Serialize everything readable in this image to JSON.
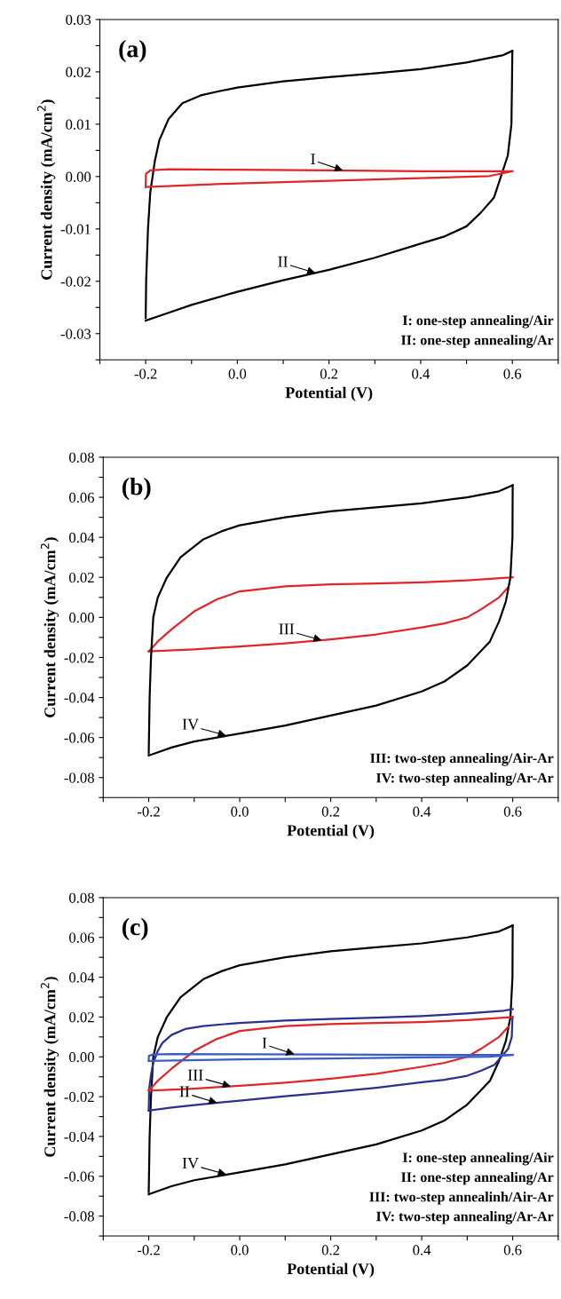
{
  "chart_data": [
    {
      "type": "line",
      "title": "(a)",
      "xlabel": "Potential (V)",
      "ylabel": "Current density (mA/cm$^{2}$)",
      "xlim": [
        -0.3,
        0.7
      ],
      "xticks": [
        {
          "value": -0.3,
          "label": null
        },
        {
          "value": -0.2,
          "label": "-0.2"
        },
        {
          "value": -0.1,
          "label": null
        },
        {
          "value": 0,
          "label": "0.0"
        },
        {
          "value": 0.1,
          "label": null
        },
        {
          "value": 0.2,
          "label": "0.2"
        },
        {
          "value": 0.3,
          "label": null
        },
        {
          "value": 0.4,
          "label": "0.4"
        },
        {
          "value": 0.5,
          "label": null
        },
        {
          "value": 0.6,
          "label": "0.6"
        },
        {
          "value": 0.7,
          "label": null
        }
      ],
      "ylim": [
        -0.035,
        0.03
      ],
      "yticks": [
        {
          "value": -0.035,
          "label": null
        },
        {
          "value": -0.03,
          "label": "-0.03"
        },
        {
          "value": -0.025,
          "label": null
        },
        {
          "value": -0.02,
          "label": "-0.02"
        },
        {
          "value": -0.015,
          "label": null
        },
        {
          "value": -0.01,
          "label": "-0.01"
        },
        {
          "value": -0.005,
          "label": null
        },
        {
          "value": 0,
          "label": "0.00"
        },
        {
          "value": 0.005,
          "label": null
        },
        {
          "value": 0.01,
          "label": "0.01"
        },
        {
          "value": 0.015,
          "label": null
        },
        {
          "value": 0.02,
          "label": "0.02"
        },
        {
          "value": 0.025,
          "label": null
        },
        {
          "value": 0.03,
          "label": "0.03"
        }
      ],
      "grid": false,
      "marker": "none",
      "line_style": "solid",
      "series": [
        {
          "color": "#000000",
          "x": [
            -0.2,
            -0.199,
            -0.195,
            -0.19,
            -0.18,
            -0.17,
            -0.15,
            -0.12,
            -0.08,
            -0.04,
            0,
            0.1,
            0.2,
            0.3,
            0.4,
            0.5,
            0.58,
            0.6
          ],
          "values": [
            -0.027,
            -0.02,
            -0.01,
            -0.003,
            0.003,
            0.007,
            0.011,
            0.014,
            0.0155,
            0.0163,
            0.017,
            0.0182,
            0.019,
            0.0197,
            0.0205,
            0.0218,
            0.0232,
            0.024
          ]
        },
        {
          "color": "#000000",
          "x": [
            -0.2,
            -0.15,
            -0.1,
            0,
            0.1,
            0.2,
            0.3,
            0.4,
            0.45,
            0.5,
            0.53,
            0.56,
            0.575,
            0.59,
            0.598,
            0.5995,
            0.6
          ],
          "values": [
            -0.0275,
            -0.026,
            -0.0245,
            -0.022,
            -0.0198,
            -0.0178,
            -0.0155,
            -0.0128,
            -0.0115,
            -0.0095,
            -0.007,
            -0.004,
            0,
            0.004,
            0.01,
            0.02,
            0.024
          ]
        },
        {
          "color": "#e0262a",
          "x": [
            -0.2,
            -0.1995,
            -0.19,
            -0.15,
            0,
            0.2,
            0.4,
            0.6
          ],
          "values": [
            -0.002,
            0.0005,
            0.0012,
            0.0014,
            0.0013,
            0.0012,
            0.001,
            0.001
          ]
        },
        {
          "color": "#e0262a",
          "x": [
            -0.2,
            0,
            0.2,
            0.4,
            0.55,
            0.6
          ],
          "values": [
            -0.002,
            -0.0013,
            -0.0008,
            -0.0003,
            0.0001,
            0.001
          ]
        }
      ],
      "annotations": [
        {
          "text": "I",
          "x": 0.23,
          "y": 0.0012
        },
        {
          "text": "II",
          "x": 0.17,
          "y": -0.0184
        },
        "I: one-step annealing/Air",
        "II: one-step annealing/Ar"
      ]
    },
    {
      "type": "line",
      "title": "(b)",
      "xlabel": "Potential (V)",
      "ylabel": "Current density (mA/cm$^{2}$)",
      "xlim": [
        -0.3,
        0.7
      ],
      "xticks": [
        {
          "value": -0.3,
          "label": null
        },
        {
          "value": -0.2,
          "label": "-0.2"
        },
        {
          "value": -0.1,
          "label": null
        },
        {
          "value": 0,
          "label": "0.0"
        },
        {
          "value": 0.1,
          "label": null
        },
        {
          "value": 0.2,
          "label": "0.2"
        },
        {
          "value": 0.3,
          "label": null
        },
        {
          "value": 0.4,
          "label": "0.4"
        },
        {
          "value": 0.5,
          "label": null
        },
        {
          "value": 0.6,
          "label": "0.6"
        },
        {
          "value": 0.7,
          "label": null
        }
      ],
      "ylim": [
        -0.09,
        0.08
      ],
      "yticks": [
        {
          "value": -0.09,
          "label": null
        },
        {
          "value": -0.08,
          "label": "-0.08"
        },
        {
          "value": -0.07,
          "label": null
        },
        {
          "value": -0.06,
          "label": "-0.06"
        },
        {
          "value": -0.05,
          "label": null
        },
        {
          "value": -0.04,
          "label": "-0.04"
        },
        {
          "value": -0.03,
          "label": null
        },
        {
          "value": -0.02,
          "label": "-0.02"
        },
        {
          "value": -0.01,
          "label": null
        },
        {
          "value": 0,
          "label": "0.00"
        },
        {
          "value": 0.01,
          "label": null
        },
        {
          "value": 0.02,
          "label": "0.02"
        },
        {
          "value": 0.03,
          "label": null
        },
        {
          "value": 0.04,
          "label": "0.04"
        },
        {
          "value": 0.05,
          "label": null
        },
        {
          "value": 0.06,
          "label": "0.06"
        },
        {
          "value": 0.07,
          "label": null
        },
        {
          "value": 0.08,
          "label": "0.08"
        }
      ],
      "grid": false,
      "marker": "none",
      "line_style": "solid",
      "series": [
        {
          "color": "#e0262a",
          "x": [
            -0.2,
            -0.18,
            -0.15,
            -0.1,
            -0.05,
            0,
            0.1,
            0.2,
            0.3,
            0.4,
            0.5,
            0.6
          ],
          "values": [
            -0.017,
            -0.012,
            -0.006,
            0.003,
            0.009,
            0.013,
            0.0155,
            0.0165,
            0.017,
            0.0175,
            0.0185,
            0.02
          ]
        },
        {
          "color": "#e0262a",
          "x": [
            -0.2,
            -0.1,
            0,
            0.1,
            0.2,
            0.3,
            0.4,
            0.45,
            0.5,
            0.53,
            0.57,
            0.59
          ],
          "values": [
            -0.017,
            -0.016,
            -0.0145,
            -0.013,
            -0.011,
            -0.0085,
            -0.005,
            -0.003,
            0,
            0.004,
            0.01,
            0.015
          ]
        },
        {
          "color": "#000000",
          "x": [
            -0.2,
            -0.198,
            -0.195,
            -0.19,
            -0.18,
            -0.16,
            -0.13,
            -0.08,
            -0.04,
            0,
            0.1,
            0.2,
            0.3,
            0.4,
            0.5,
            0.57,
            0.6
          ],
          "values": [
            -0.068,
            -0.04,
            -0.02,
            0,
            0.01,
            0.02,
            0.03,
            0.039,
            0.043,
            0.046,
            0.05,
            0.053,
            0.055,
            0.057,
            0.06,
            0.063,
            0.066
          ]
        },
        {
          "color": "#000000",
          "x": [
            -0.2,
            -0.15,
            -0.1,
            0,
            0.1,
            0.2,
            0.3,
            0.4,
            0.45,
            0.5,
            0.55,
            0.57,
            0.585,
            0.595,
            0.5995,
            0.6
          ],
          "values": [
            -0.069,
            -0.065,
            -0.062,
            -0.058,
            -0.054,
            -0.049,
            -0.044,
            -0.037,
            -0.032,
            -0.024,
            -0.012,
            -0.002,
            0.008,
            0.02,
            0.04,
            0.066
          ]
        }
      ],
      "annotations": [
        {
          "text": "III",
          "x": 0.18,
          "y": -0.0114
        },
        {
          "text": "IV",
          "x": -0.03,
          "y": -0.059
        },
        "III: two-step annealing/Air-Ar",
        "IV: two-step annealing/Ar-Ar"
      ]
    },
    {
      "type": "line",
      "title": "(c)",
      "xlabel": "Potential (V)",
      "ylabel": "Current density (mA/cm$^{2}$)",
      "xlim": [
        -0.3,
        0.7
      ],
      "xticks": [
        {
          "value": -0.3,
          "label": null
        },
        {
          "value": -0.2,
          "label": "-0.2"
        },
        {
          "value": -0.1,
          "label": null
        },
        {
          "value": 0,
          "label": "0.0"
        },
        {
          "value": 0.1,
          "label": null
        },
        {
          "value": 0.2,
          "label": "0.2"
        },
        {
          "value": 0.3,
          "label": null
        },
        {
          "value": 0.4,
          "label": "0.4"
        },
        {
          "value": 0.5,
          "label": null
        },
        {
          "value": 0.6,
          "label": "0.6"
        },
        {
          "value": 0.7,
          "label": null
        }
      ],
      "ylim": [
        -0.09,
        0.08
      ],
      "yticks": [
        {
          "value": -0.09,
          "label": null
        },
        {
          "value": -0.08,
          "label": "-0.08"
        },
        {
          "value": -0.07,
          "label": null
        },
        {
          "value": -0.06,
          "label": "-0.06"
        },
        {
          "value": -0.05,
          "label": null
        },
        {
          "value": -0.04,
          "label": "-0.04"
        },
        {
          "value": -0.03,
          "label": null
        },
        {
          "value": -0.02,
          "label": "-0.02"
        },
        {
          "value": -0.01,
          "label": null
        },
        {
          "value": 0,
          "label": "0.00"
        },
        {
          "value": 0.01,
          "label": null
        },
        {
          "value": 0.02,
          "label": "0.02"
        },
        {
          "value": 0.03,
          "label": null
        },
        {
          "value": 0.04,
          "label": "0.04"
        },
        {
          "value": 0.05,
          "label": null
        },
        {
          "value": 0.06,
          "label": "0.06"
        },
        {
          "value": 0.07,
          "label": null
        },
        {
          "value": 0.08,
          "label": "0.08"
        }
      ],
      "grid": false,
      "marker": "none",
      "line_style": "solid",
      "series": [
        {
          "color": "#000000",
          "x": [
            -0.2,
            -0.198,
            -0.195,
            -0.19,
            -0.18,
            -0.16,
            -0.13,
            -0.08,
            -0.04,
            0,
            0.1,
            0.2,
            0.3,
            0.4,
            0.5,
            0.57,
            0.6
          ],
          "values": [
            -0.068,
            -0.04,
            -0.02,
            0,
            0.01,
            0.02,
            0.03,
            0.039,
            0.043,
            0.046,
            0.05,
            0.053,
            0.055,
            0.057,
            0.06,
            0.063,
            0.066
          ]
        },
        {
          "color": "#000000",
          "x": [
            -0.2,
            -0.15,
            -0.1,
            0,
            0.1,
            0.2,
            0.3,
            0.4,
            0.45,
            0.5,
            0.55,
            0.57,
            0.585,
            0.595,
            0.5995,
            0.6
          ],
          "values": [
            -0.069,
            -0.065,
            -0.062,
            -0.058,
            -0.054,
            -0.049,
            -0.044,
            -0.037,
            -0.032,
            -0.024,
            -0.012,
            -0.002,
            0.008,
            0.02,
            0.04,
            0.066
          ]
        },
        {
          "color": "#2b2f8f",
          "x": [
            -0.2,
            -0.1995,
            -0.199,
            -0.195,
            -0.19,
            -0.18,
            -0.17,
            -0.15,
            -0.12,
            -0.08,
            -0.04,
            0,
            0.1,
            0.2,
            0.3,
            0.4,
            0.5,
            0.58,
            0.6
          ],
          "values": [
            -0.027,
            -0.022,
            -0.016,
            -0.009,
            -0.003,
            0.003,
            0.007,
            0.011,
            0.014,
            0.0155,
            0.0163,
            0.017,
            0.0182,
            0.019,
            0.0197,
            0.0205,
            0.0218,
            0.0232,
            0.024
          ]
        },
        {
          "color": "#2b2f8f",
          "x": [
            -0.2,
            -0.15,
            -0.1,
            0,
            0.1,
            0.2,
            0.3,
            0.4,
            0.45,
            0.5,
            0.53,
            0.56,
            0.575,
            0.59,
            0.598,
            0.5995
          ],
          "values": [
            -0.027,
            -0.0255,
            -0.0242,
            -0.022,
            -0.0198,
            -0.0178,
            -0.0155,
            -0.0128,
            -0.0115,
            -0.0095,
            -0.007,
            -0.004,
            0,
            0.004,
            0.01,
            0.02
          ]
        },
        {
          "color": "#e0262a",
          "x": [
            -0.2,
            -0.18,
            -0.15,
            -0.1,
            -0.05,
            0,
            0.1,
            0.2,
            0.3,
            0.4,
            0.5,
            0.6
          ],
          "values": [
            -0.017,
            -0.012,
            -0.006,
            0.003,
            0.009,
            0.013,
            0.0155,
            0.0165,
            0.017,
            0.0175,
            0.0185,
            0.02
          ]
        },
        {
          "color": "#e0262a",
          "x": [
            -0.2,
            -0.1,
            0,
            0.1,
            0.2,
            0.3,
            0.4,
            0.45,
            0.5,
            0.53,
            0.57,
            0.59
          ],
          "values": [
            -0.017,
            -0.016,
            -0.0145,
            -0.013,
            -0.011,
            -0.0085,
            -0.005,
            -0.003,
            0,
            0.004,
            0.01,
            0.015
          ]
        },
        {
          "color": "#3a5cc8",
          "x": [
            -0.2,
            -0.1995,
            -0.19,
            -0.15,
            0,
            0.2,
            0.4,
            0.6
          ],
          "values": [
            -0.002,
            0.0005,
            0.0012,
            0.0014,
            0.0013,
            0.0012,
            0.001,
            0.001
          ]
        },
        {
          "color": "#3a5cc8",
          "x": [
            -0.2,
            0,
            0.2,
            0.4,
            0.55,
            0.6
          ],
          "values": [
            -0.002,
            -0.0013,
            -0.0008,
            -0.0003,
            0.0001,
            0.001
          ]
        }
      ],
      "annotations": [
        {
          "text": "I",
          "x": 0.12,
          "y": 0.0013
        },
        {
          "text": "III",
          "x": -0.02,
          "y": -0.0148
        },
        {
          "text": "II",
          "x": -0.05,
          "y": -0.0231
        },
        {
          "text": "IV",
          "x": -0.03,
          "y": -0.059
        },
        "I: one-step annealing/Air",
        "II: one-step annealing/Ar",
        "III: two-step annealinh/Air-Ar",
        "IV: two-step annealing/Ar-Ar"
      ]
    }
  ]
}
